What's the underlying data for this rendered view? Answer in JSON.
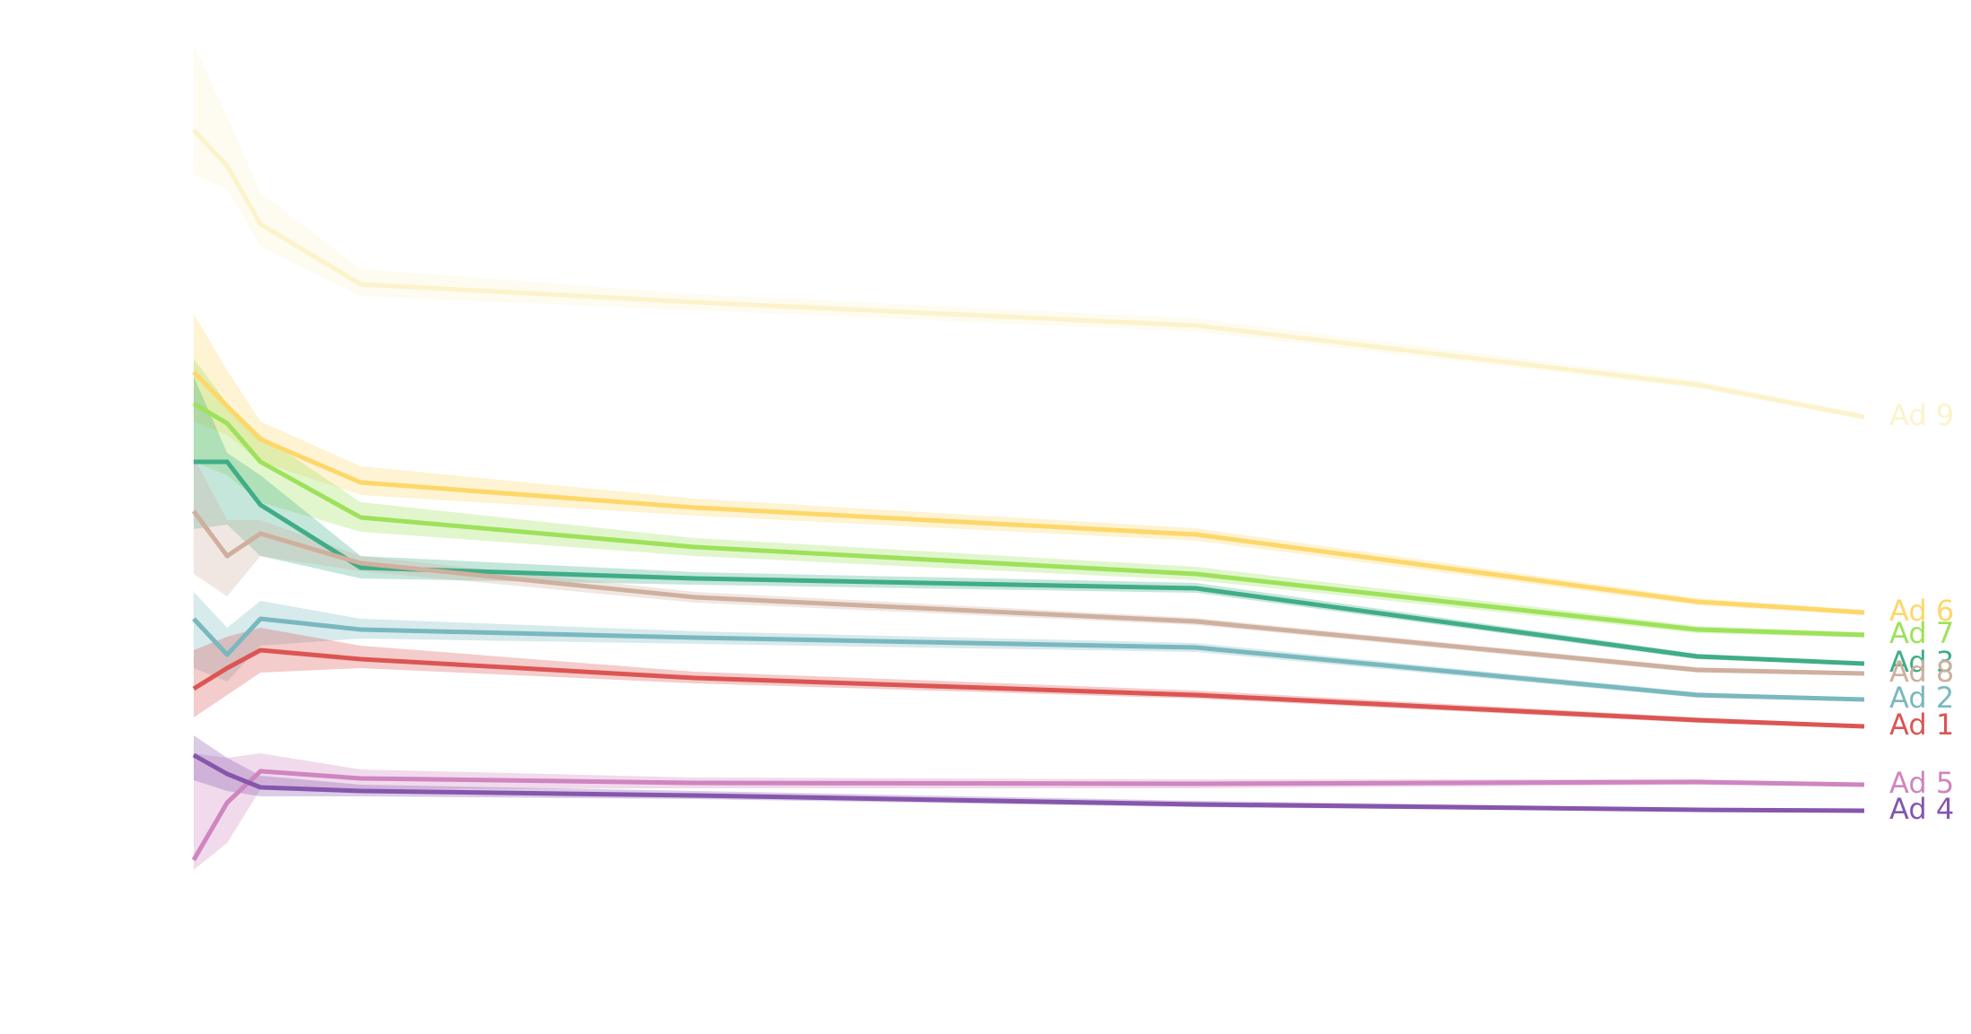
{
  "chart_data": {
    "type": "line",
    "title": "",
    "xlabel": "",
    "ylabel": "",
    "axes_visible": false,
    "grid": false,
    "legend": "direct labels at right end of lines",
    "x": [
      0,
      1,
      2,
      5,
      15,
      30,
      45,
      50
    ],
    "xlim": [
      0,
      50
    ],
    "ylim": [
      0,
      1
    ],
    "series": [
      {
        "name": "Ad 9",
        "color": "#fcf3cc",
        "values": [
          0.885,
          0.845,
          0.78,
          0.713,
          0.693,
          0.667,
          0.601,
          0.565
        ],
        "lower": [
          0.835,
          0.82,
          0.755,
          0.7,
          0.684,
          0.66,
          0.597,
          0.562
        ],
        "upper": [
          0.98,
          0.9,
          0.815,
          0.73,
          0.702,
          0.675,
          0.606,
          0.568
        ]
      },
      {
        "name": "Ad 6",
        "color": "#fdd76a",
        "values": [
          0.615,
          0.577,
          0.54,
          0.492,
          0.464,
          0.434,
          0.359,
          0.347
        ],
        "lower": [
          0.56,
          0.545,
          0.515,
          0.478,
          0.455,
          0.427,
          0.355,
          0.344
        ],
        "upper": [
          0.68,
          0.617,
          0.56,
          0.51,
          0.474,
          0.441,
          0.363,
          0.35
        ]
      },
      {
        "name": "Ad 7",
        "color": "#9de25a",
        "values": [
          0.58,
          0.558,
          0.515,
          0.453,
          0.42,
          0.39,
          0.328,
          0.322
        ],
        "lower": [
          0.515,
          0.5,
          0.47,
          0.437,
          0.41,
          0.383,
          0.324,
          0.319
        ],
        "upper": [
          0.63,
          0.58,
          0.545,
          0.47,
          0.43,
          0.398,
          0.332,
          0.325
        ]
      },
      {
        "name": "Ad 3",
        "color": "#40ad87",
        "values": [
          0.515,
          0.515,
          0.467,
          0.397,
          0.385,
          0.374,
          0.298,
          0.29
        ],
        "lower": [
          0.44,
          0.445,
          0.41,
          0.385,
          0.378,
          0.369,
          0.295,
          0.288
        ],
        "upper": [
          0.61,
          0.525,
          0.5,
          0.41,
          0.392,
          0.38,
          0.301,
          0.292
        ]
      },
      {
        "name": "Ad 8",
        "color": "#cfaf9e",
        "values": [
          0.46,
          0.41,
          0.435,
          0.402,
          0.364,
          0.337,
          0.283,
          0.279
        ],
        "lower": [
          0.39,
          0.365,
          0.41,
          0.393,
          0.358,
          0.333,
          0.28,
          0.277
        ],
        "upper": [
          0.52,
          0.45,
          0.45,
          0.41,
          0.37,
          0.341,
          0.286,
          0.281
        ]
      },
      {
        "name": "Ad 2",
        "color": "#7ab8bf",
        "values": [
          0.34,
          0.3,
          0.34,
          0.328,
          0.319,
          0.308,
          0.255,
          0.25
        ],
        "lower": [
          0.285,
          0.27,
          0.31,
          0.318,
          0.312,
          0.303,
          0.252,
          0.248
        ],
        "upper": [
          0.37,
          0.33,
          0.36,
          0.34,
          0.326,
          0.313,
          0.258,
          0.252
        ]
      },
      {
        "name": "Ad 1",
        "color": "#dc5553",
        "values": [
          0.262,
          0.285,
          0.305,
          0.295,
          0.274,
          0.255,
          0.227,
          0.22
        ],
        "lower": [
          0.23,
          0.255,
          0.28,
          0.285,
          0.268,
          0.251,
          0.224,
          0.218
        ],
        "upper": [
          0.305,
          0.32,
          0.33,
          0.31,
          0.281,
          0.26,
          0.23,
          0.222
        ]
      },
      {
        "name": "Ad 5",
        "color": "#cf85c0",
        "values": [
          0.071,
          0.135,
          0.17,
          0.162,
          0.157,
          0.156,
          0.158,
          0.155
        ],
        "lower": [
          0.06,
          0.09,
          0.15,
          0.15,
          0.151,
          0.151,
          0.155,
          0.153
        ],
        "upper": [
          0.19,
          0.185,
          0.19,
          0.172,
          0.163,
          0.161,
          0.161,
          0.157
        ]
      },
      {
        "name": "Ad 4",
        "color": "#8656ad",
        "values": [
          0.188,
          0.167,
          0.152,
          0.148,
          0.143,
          0.133,
          0.127,
          0.126
        ],
        "lower": [
          0.16,
          0.148,
          0.142,
          0.142,
          0.139,
          0.13,
          0.125,
          0.124
        ],
        "upper": [
          0.21,
          0.185,
          0.165,
          0.155,
          0.148,
          0.137,
          0.129,
          0.128
        ]
      }
    ]
  }
}
